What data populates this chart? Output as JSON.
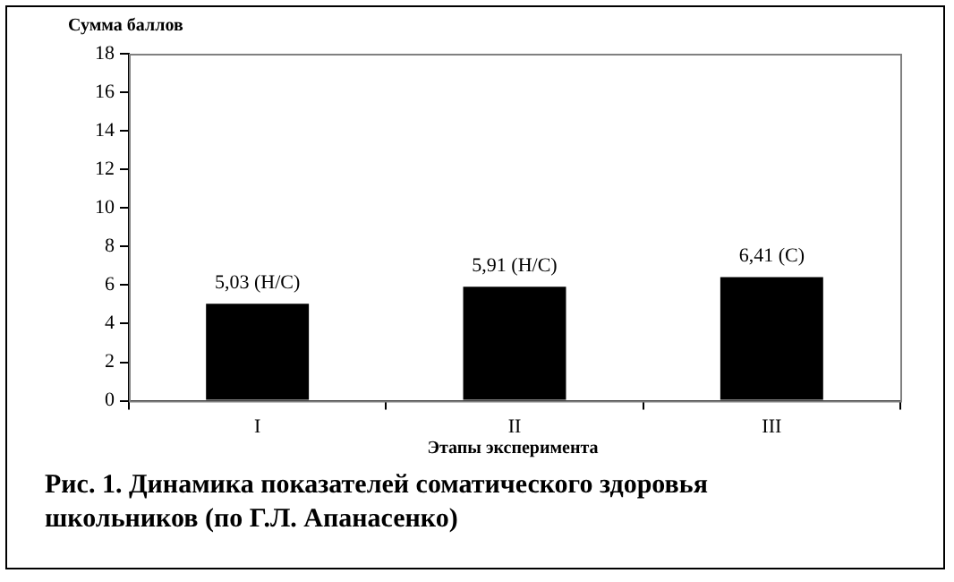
{
  "chart_data": {
    "type": "bar",
    "ylabel": "Сумма баллов",
    "xlabel": "Этапы эксперимента",
    "categories": [
      "I",
      "II",
      "III"
    ],
    "values": [
      5.03,
      5.91,
      6.41
    ],
    "color": "#000000",
    "value_labels": [
      "5,03 (Н/С)",
      "5,91 (Н/С)",
      "6,41 (С)"
    ],
    "ylim": [
      0,
      18
    ],
    "yticks": [
      0,
      2,
      4,
      6,
      8,
      10,
      12,
      14,
      16,
      18
    ],
    "grid": false,
    "legend": false,
    "annotations": [
      "Рис. 1. Динамика показателей соматического здоровья школьников (по Г.Л. Апанасенко)"
    ]
  }
}
